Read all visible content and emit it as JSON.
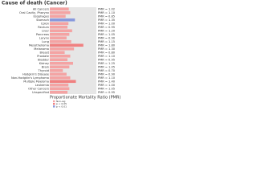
{
  "chart_data": {
    "type": "hbar",
    "title": "Cause of death (Cancer)",
    "xlabel": "Proportionate Mortality Ratio (PMR)",
    "categories": [
      "All Cancers",
      "Oral Cavity, Pharynx",
      "Esophagus",
      "Stomach",
      "Colon",
      "Rectum",
      "Liver",
      "Pancreas",
      "Larynx",
      "Lung",
      "Mesothelioma",
      "Melanoma",
      "Breast",
      "Prostate",
      "Bladder",
      "Kidney",
      "Brain",
      "Thyroid",
      "Hodgkin's Disease",
      "Non-Hodgkin's Lymphoma",
      "Multiple Myeloma",
      "Leukemia",
      "Other Cancers",
      "Unspecified"
    ],
    "values": [
      1.02,
      1.1,
      0.85,
      1.35,
      1.0,
      0.95,
      1.2,
      1.05,
      0.9,
      1.15,
      1.8,
      1.3,
      0.8,
      1.1,
      0.95,
      1.25,
      1.05,
      0.7,
      0.9,
      1.1,
      1.4,
      1.0,
      1.05,
      0.95
    ],
    "value_labels": [
      "PMR = 1.02",
      "PMR = 1.10",
      "PMR = 0.85",
      "PMR = 1.35",
      "PMR = 1.00",
      "PMR = 0.95",
      "PMR = 1.20",
      "PMR = 1.05",
      "PMR = 0.90",
      "PMR = 1.15",
      "PMR = 1.80",
      "PMR = 1.30",
      "PMR = 0.80",
      "PMR = 1.10",
      "PMR = 0.95",
      "PMR = 1.25",
      "PMR = 1.05",
      "PMR = 0.70",
      "PMR = 0.90",
      "PMR = 1.10",
      "PMR = 1.40",
      "PMR = 1.00",
      "PMR = 1.05",
      "PMR = 0.95"
    ],
    "bar_colors": [
      "#f4a3a3",
      "#f4a3a3",
      "#f4a3a3",
      "#8899dd",
      "#f4a3a3",
      "#f4a3a3",
      "#f4a3a3",
      "#f4a3a3",
      "#f4a3a3",
      "#f4a3a3",
      "#f08080",
      "#f4a3a3",
      "#f4a3a3",
      "#f4a3a3",
      "#f4a3a3",
      "#f4a3a3",
      "#f4a3a3",
      "#f4a3a3",
      "#f4a3a3",
      "#f4a3a3",
      "#f08080",
      "#f4a3a3",
      "#f4a3a3",
      "#f4a3a3"
    ],
    "xlim": [
      0,
      2.5
    ],
    "legend": [
      {
        "name": "Non-sig",
        "color": "#f4a3a3"
      },
      {
        "name": "p < 0.05",
        "color": "#f08080"
      },
      {
        "name": "p < 0.01",
        "color": "#8899dd"
      }
    ]
  }
}
